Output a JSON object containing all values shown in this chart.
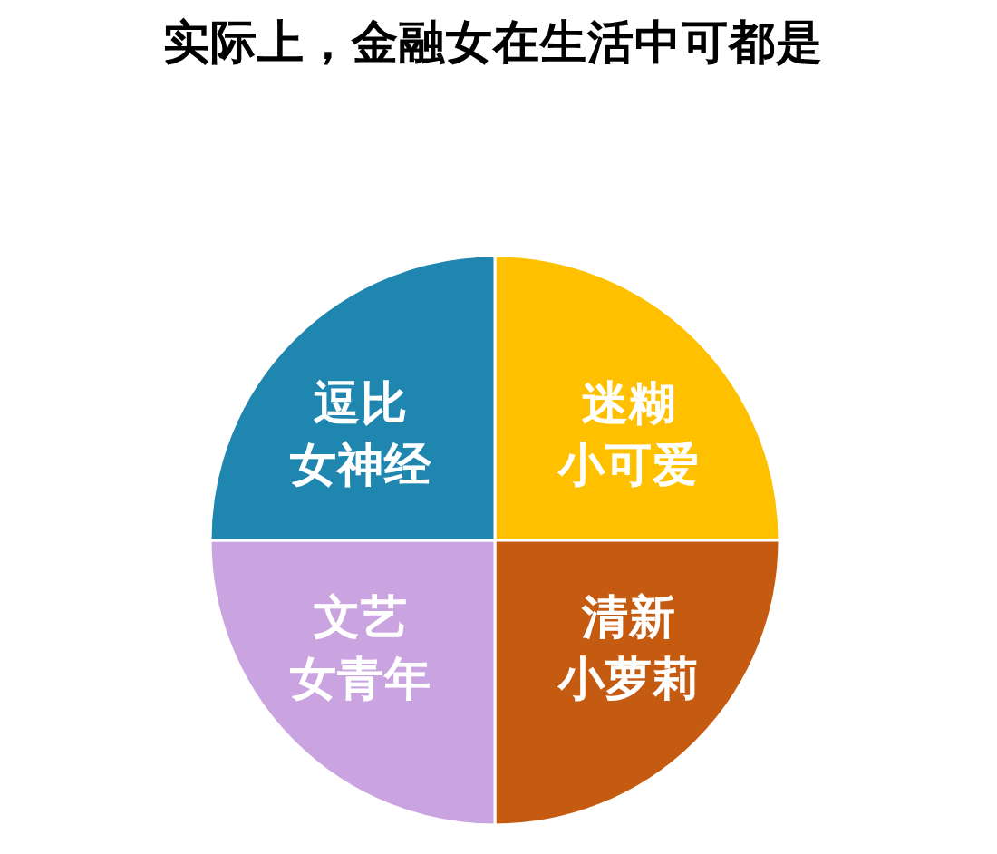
{
  "chart_data": {
    "type": "pie",
    "title": "实际上，金融女在生活中可都是",
    "categories": [
      "迷糊小可爱",
      "清新小萝莉",
      "文艺女青年",
      "逗比女神经"
    ],
    "values": [
      25,
      25,
      25,
      25
    ],
    "colors": [
      "#ffc000",
      "#c55a11",
      "#c9a4e0",
      "#1f86b0"
    ]
  }
}
